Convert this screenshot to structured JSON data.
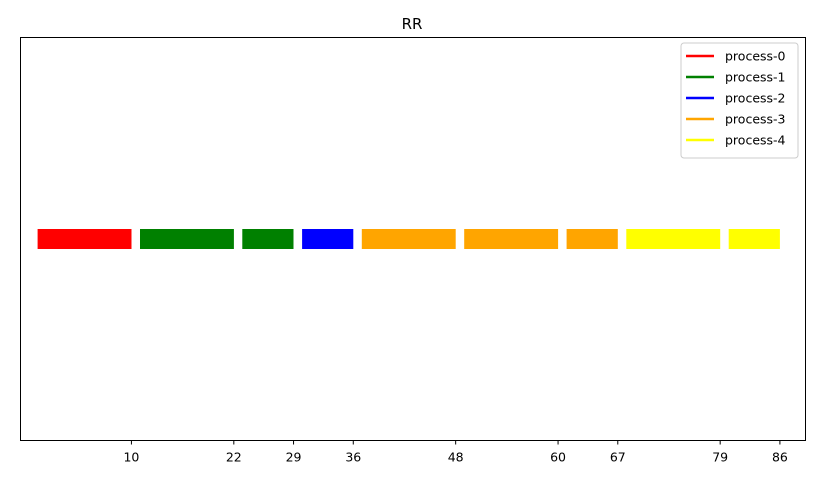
{
  "chart_data": {
    "type": "gantt",
    "title": "RR",
    "xlabel": "",
    "ylabel": "",
    "xlim": [
      -3,
      89
    ],
    "xticks": [
      10,
      22,
      29,
      36,
      48,
      60,
      67,
      79,
      86
    ],
    "grid": false,
    "legend_position": "top-right",
    "series": [
      {
        "name": "process-0",
        "color": "#ff0000"
      },
      {
        "name": "process-1",
        "color": "#008000"
      },
      {
        "name": "process-2",
        "color": "#0000ff"
      },
      {
        "name": "process-3",
        "color": "#ffa500"
      },
      {
        "name": "process-4",
        "color": "#ffff00"
      }
    ],
    "segments": [
      {
        "process": 0,
        "start": -1,
        "end": 10
      },
      {
        "process": 1,
        "start": 11,
        "end": 22
      },
      {
        "process": 1,
        "start": 23,
        "end": 29
      },
      {
        "process": 2,
        "start": 30,
        "end": 36
      },
      {
        "process": 3,
        "start": 37,
        "end": 48
      },
      {
        "process": 3,
        "start": 49,
        "end": 60
      },
      {
        "process": 3,
        "start": 61,
        "end": 67
      },
      {
        "process": 4,
        "start": 68,
        "end": 79
      },
      {
        "process": 4,
        "start": 80,
        "end": 86
      }
    ]
  }
}
